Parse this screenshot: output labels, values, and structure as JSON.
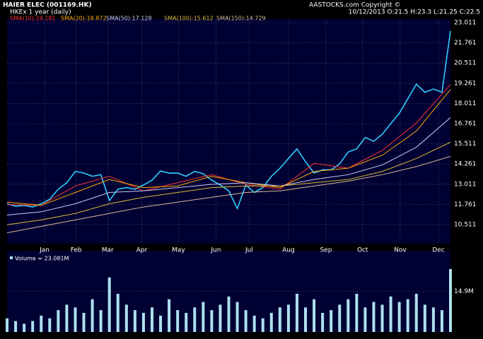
{
  "chart_data": [
    {
      "type": "line",
      "title": "HAIER ELEC (001169.HK)",
      "subtitle": "HKEx  1 year (daily)",
      "annotations": [
        "AASTOCKS.com Copyright ©",
        "10/12/2013  O:21.5  H:23.3  L:21.25  C:22.5"
      ],
      "xlim": [
        0,
        52
      ],
      "xticks": [
        {
          "value": 4.4,
          "label": "Jan"
        },
        {
          "value": 8.1,
          "label": "Feb"
        },
        {
          "value": 11.8,
          "label": "Mar"
        },
        {
          "value": 15.8,
          "label": "Apr"
        },
        {
          "value": 20.1,
          "label": "May"
        },
        {
          "value": 24.5,
          "label": "Jun"
        },
        {
          "value": 28.4,
          "label": "Jul"
        },
        {
          "value": 33.0,
          "label": "Aug"
        },
        {
          "value": 37.4,
          "label": "Sep"
        },
        {
          "value": 41.7,
          "label": "Oct"
        },
        {
          "value": 46.1,
          "label": "Nov"
        },
        {
          "value": 50.6,
          "label": "Dec"
        }
      ],
      "ylim": [
        9.33,
        23.23
      ],
      "yticks": [
        23.011,
        21.761,
        20.511,
        19.261,
        {
          "value": 18.011,
          "label": "18.011"
        },
        16.761,
        15.511,
        14.261,
        13.011,
        11.761,
        10.511
      ],
      "grid": true,
      "series": [
        {
          "color": "#33ccff",
          "x": [
            0,
            1,
            2,
            3,
            4,
            5,
            6,
            7,
            8,
            9,
            10,
            11,
            12,
            13,
            14,
            15,
            16,
            17,
            18,
            19,
            20,
            21,
            22,
            23,
            24,
            25,
            26,
            27,
            28,
            29,
            30,
            31,
            32,
            33,
            34,
            35,
            36,
            37,
            38,
            39,
            40,
            41,
            42,
            43,
            44,
            45,
            46,
            47,
            48,
            49,
            50,
            51,
            52
          ],
          "values": [
            11.8,
            11.65,
            11.7,
            11.6,
            11.8,
            12.08,
            12.7,
            13.1,
            13.8,
            13.7,
            13.5,
            13.6,
            12.0,
            12.7,
            12.8,
            12.7,
            12.96,
            13.26,
            13.83,
            13.7,
            13.7,
            13.5,
            13.8,
            13.66,
            13.26,
            12.96,
            12.6,
            11.5,
            12.96,
            12.5,
            12.8,
            13.5,
            14.0,
            14.6,
            15.2,
            14.4,
            13.7,
            13.9,
            13.9,
            14.27,
            15.0,
            15.2,
            15.9,
            15.67,
            16.1,
            16.76,
            17.4,
            18.3,
            19.2,
            18.7,
            18.9,
            18.7,
            22.5
          ]
        },
        {
          "name": "SMA(10):19.181",
          "color": "#ff3333",
          "x": [
            0,
            4,
            8,
            12,
            16,
            20,
            24,
            28,
            32,
            36,
            40,
            44,
            48,
            52
          ],
          "values": [
            11.75,
            11.7,
            12.9,
            13.5,
            12.6,
            13.1,
            13.6,
            13.0,
            12.7,
            14.3,
            14.0,
            15.1,
            16.8,
            19.181
          ]
        },
        {
          "name": "SMA(20):18.872",
          "color": "#ffaa00",
          "x": [
            0,
            4,
            8,
            12,
            16,
            20,
            24,
            28,
            32,
            36,
            40,
            44,
            48,
            52
          ],
          "values": [
            11.9,
            11.7,
            12.5,
            13.3,
            12.8,
            12.9,
            13.5,
            13.1,
            12.8,
            13.8,
            14.0,
            14.8,
            16.3,
            18.872
          ]
        },
        {
          "name": "SMA(50):17.128",
          "color": "#ccccff",
          "x": [
            0,
            4,
            8,
            12,
            16,
            20,
            24,
            28,
            32,
            36,
            40,
            44,
            48,
            52
          ],
          "values": [
            11.1,
            11.3,
            11.8,
            12.5,
            12.6,
            12.8,
            13.0,
            13.1,
            12.9,
            13.3,
            13.6,
            14.2,
            15.3,
            17.128
          ]
        },
        {
          "name": "SMA(100):15.612",
          "color": "#ddbb33",
          "x": [
            0,
            4,
            8,
            12,
            16,
            20,
            24,
            28,
            32,
            36,
            40,
            44,
            48,
            52
          ],
          "values": [
            10.5,
            10.8,
            11.2,
            11.8,
            12.2,
            12.5,
            12.8,
            12.9,
            12.9,
            13.1,
            13.3,
            13.8,
            14.6,
            15.612
          ]
        },
        {
          "name": "SMA(150):14.729",
          "color": "#ddbb99",
          "x": [
            0,
            4,
            8,
            12,
            16,
            20,
            24,
            28,
            32,
            36,
            40,
            44,
            48,
            52
          ],
          "values": [
            10.0,
            10.4,
            10.8,
            11.2,
            11.6,
            11.9,
            12.2,
            12.5,
            12.6,
            12.9,
            13.2,
            13.6,
            14.1,
            14.729
          ]
        }
      ]
    },
    {
      "type": "bar",
      "xlim": [
        0,
        52
      ],
      "ylim": [
        0,
        29.8
      ],
      "yticks": [
        {
          "value": 14.9,
          "label": "14.9M"
        }
      ],
      "grid": true,
      "series": [
        {
          "name": "Volume = 23.081M",
          "color": "#aee0f0",
          "x": [
            0,
            1,
            2,
            3,
            4,
            5,
            6,
            7,
            8,
            9,
            10,
            11,
            12,
            13,
            14,
            15,
            16,
            17,
            18,
            19,
            20,
            21,
            22,
            23,
            24,
            25,
            26,
            27,
            28,
            29,
            30,
            31,
            32,
            33,
            34,
            35,
            36,
            37,
            38,
            39,
            40,
            41,
            42,
            43,
            44,
            45,
            46,
            47,
            48,
            49,
            50,
            51,
            52
          ],
          "values": [
            5,
            4,
            3,
            4,
            6,
            5,
            8,
            10,
            9,
            7,
            12,
            8,
            20,
            14,
            10,
            8,
            7,
            9,
            6,
            12,
            8,
            7,
            9,
            11,
            8,
            10,
            13,
            11,
            8,
            6,
            5,
            7,
            9,
            10,
            14,
            9,
            12,
            7,
            8,
            10,
            12,
            14,
            9,
            11,
            10,
            13,
            11,
            12,
            14,
            10,
            9,
            8,
            23.081
          ]
        }
      ]
    }
  ]
}
